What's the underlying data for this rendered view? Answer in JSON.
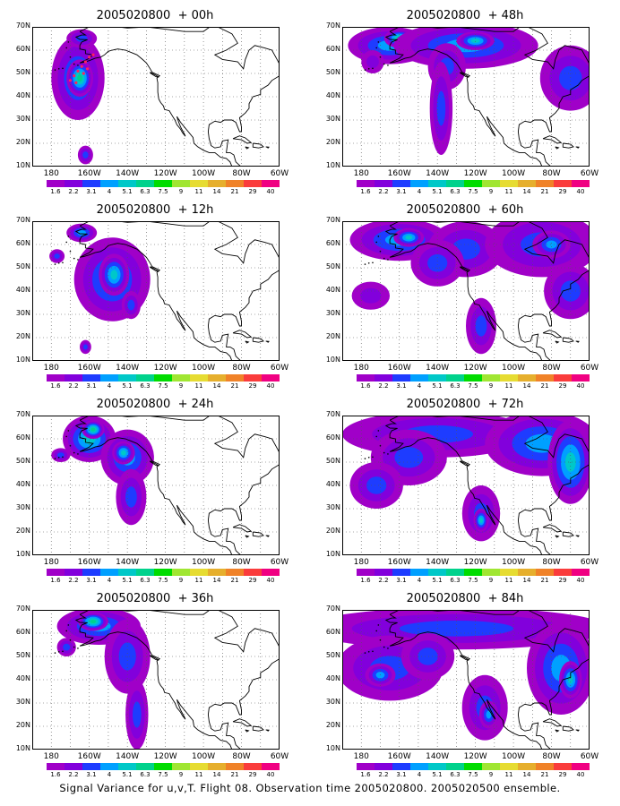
{
  "base_time": "2005020800",
  "caption": "Signal Variance for u,v,T. Flight 08. Observation time 2005020800. 2005020500 ensemble.",
  "y_ticks": [
    "70N",
    "60N",
    "50N",
    "40N",
    "30N",
    "20N",
    "10N"
  ],
  "x_ticks": [
    "180",
    "160W",
    "140W",
    "120W",
    "100W",
    "80W",
    "60W"
  ],
  "colorbar": {
    "colors": [
      "#a000c8",
      "#8200dc",
      "#1e3cff",
      "#00a0ff",
      "#00c8c8",
      "#00d28c",
      "#00dc00",
      "#a0e632",
      "#e6dc32",
      "#e6af2d",
      "#f08228",
      "#fa3c3c",
      "#f00082"
    ],
    "labels": [
      "1.6",
      "2.2",
      "3.1",
      "4",
      "5.1",
      "6.3",
      "7.5",
      "9",
      "11",
      "14",
      "21",
      "29",
      "40"
    ]
  },
  "panels": [
    {
      "title": "2005020800  + 00h",
      "offset": "+ 00h",
      "blobs": [
        {
          "lon": -166,
          "lat": 48,
          "w": 14,
          "h": 18,
          "v": 3
        },
        {
          "lon": -165,
          "lat": 48,
          "w": 7,
          "h": 8,
          "v": 5
        },
        {
          "lon": -164,
          "lat": 65,
          "w": 8,
          "h": 4,
          "v": 2
        },
        {
          "lon": -162,
          "lat": 15,
          "w": 4,
          "h": 4,
          "v": 2
        }
      ]
    },
    {
      "title": "2005020800  + 48h",
      "offset": "+ 48h",
      "blobs": [
        {
          "lon": -165,
          "lat": 62,
          "w": 22,
          "h": 8,
          "v": 3
        },
        {
          "lon": -160,
          "lat": 65,
          "w": 8,
          "h": 4,
          "v": 5
        },
        {
          "lon": -125,
          "lat": 62,
          "w": 38,
          "h": 10,
          "v": 3
        },
        {
          "lon": -120,
          "lat": 64,
          "w": 10,
          "h": 4,
          "v": 4
        },
        {
          "lon": -135,
          "lat": 53,
          "w": 10,
          "h": 10,
          "v": 2
        },
        {
          "lon": -138,
          "lat": 35,
          "w": 6,
          "h": 20,
          "v": 2
        },
        {
          "lon": -70,
          "lat": 48,
          "w": 16,
          "h": 14,
          "v": 2
        },
        {
          "lon": -174,
          "lat": 55,
          "w": 6,
          "h": 5,
          "v": 1
        }
      ]
    },
    {
      "title": "2005020800  + 12h",
      "offset": "+ 12h",
      "blobs": [
        {
          "lon": -164,
          "lat": 65,
          "w": 8,
          "h": 4,
          "v": 3
        },
        {
          "lon": -148,
          "lat": 45,
          "w": 20,
          "h": 18,
          "v": 3
        },
        {
          "lon": -147,
          "lat": 47,
          "w": 8,
          "h": 9,
          "v": 4
        },
        {
          "lon": -138,
          "lat": 34,
          "w": 5,
          "h": 6,
          "v": 2
        },
        {
          "lon": -177,
          "lat": 55,
          "w": 4,
          "h": 3,
          "v": 2
        },
        {
          "lon": -162,
          "lat": 16,
          "w": 3,
          "h": 3,
          "v": 2
        }
      ]
    },
    {
      "title": "2005020800  + 60h",
      "offset": "+ 60h",
      "blobs": [
        {
          "lon": -160,
          "lat": 62,
          "w": 26,
          "h": 9,
          "v": 3
        },
        {
          "lon": -155,
          "lat": 63,
          "w": 8,
          "h": 4,
          "v": 4
        },
        {
          "lon": -125,
          "lat": 58,
          "w": 20,
          "h": 12,
          "v": 2
        },
        {
          "lon": -140,
          "lat": 52,
          "w": 14,
          "h": 10,
          "v": 2
        },
        {
          "lon": -85,
          "lat": 60,
          "w": 30,
          "h": 14,
          "v": 2
        },
        {
          "lon": -80,
          "lat": 60,
          "w": 10,
          "h": 6,
          "v": 3
        },
        {
          "lon": -70,
          "lat": 40,
          "w": 14,
          "h": 12,
          "v": 2
        },
        {
          "lon": -175,
          "lat": 38,
          "w": 10,
          "h": 6,
          "v": 1
        },
        {
          "lon": -117,
          "lat": 25,
          "w": 8,
          "h": 12,
          "v": 2
        }
      ]
    },
    {
      "title": "2005020800  + 24h",
      "offset": "+ 24h",
      "blobs": [
        {
          "lon": -160,
          "lat": 60,
          "w": 14,
          "h": 10,
          "v": 4
        },
        {
          "lon": -158,
          "lat": 64,
          "w": 6,
          "h": 4,
          "v": 5
        },
        {
          "lon": -140,
          "lat": 52,
          "w": 14,
          "h": 12,
          "v": 3
        },
        {
          "lon": -142,
          "lat": 54,
          "w": 6,
          "h": 5,
          "v": 4
        },
        {
          "lon": -138,
          "lat": 35,
          "w": 8,
          "h": 12,
          "v": 2
        },
        {
          "lon": -175,
          "lat": 53,
          "w": 5,
          "h": 3,
          "v": 2
        }
      ]
    },
    {
      "title": "2005020800  + 72h",
      "offset": "+ 72h",
      "blobs": [
        {
          "lon": -140,
          "lat": 62,
          "w": 50,
          "h": 10,
          "v": 2
        },
        {
          "lon": -155,
          "lat": 52,
          "w": 20,
          "h": 12,
          "v": 2
        },
        {
          "lon": -172,
          "lat": 40,
          "w": 14,
          "h": 10,
          "v": 2
        },
        {
          "lon": -117,
          "lat": 28,
          "w": 10,
          "h": 12,
          "v": 2
        },
        {
          "lon": -117,
          "lat": 25,
          "w": 4,
          "h": 5,
          "v": 4
        },
        {
          "lon": -85,
          "lat": 58,
          "w": 30,
          "h": 14,
          "v": 3
        },
        {
          "lon": -70,
          "lat": 50,
          "w": 12,
          "h": 18,
          "v": 4
        }
      ]
    },
    {
      "title": "2005020800  + 36h",
      "offset": "+ 36h",
      "blobs": [
        {
          "lon": -155,
          "lat": 63,
          "w": 22,
          "h": 8,
          "v": 3
        },
        {
          "lon": -158,
          "lat": 65,
          "w": 8,
          "h": 4,
          "v": 5
        },
        {
          "lon": -140,
          "lat": 50,
          "w": 12,
          "h": 16,
          "v": 2
        },
        {
          "lon": -135,
          "lat": 25,
          "w": 6,
          "h": 15,
          "v": 2
        },
        {
          "lon": -172,
          "lat": 54,
          "w": 5,
          "h": 4,
          "v": 2
        }
      ]
    },
    {
      "title": "2005020800  + 84h",
      "offset": "+ 84h",
      "blobs": [
        {
          "lon": -130,
          "lat": 62,
          "w": 80,
          "h": 9,
          "v": 2
        },
        {
          "lon": -165,
          "lat": 45,
          "w": 28,
          "h": 14,
          "v": 2
        },
        {
          "lon": -170,
          "lat": 42,
          "w": 8,
          "h": 5,
          "v": 3
        },
        {
          "lon": -145,
          "lat": 50,
          "w": 14,
          "h": 10,
          "v": 2
        },
        {
          "lon": -115,
          "lat": 28,
          "w": 12,
          "h": 14,
          "v": 2
        },
        {
          "lon": -113,
          "lat": 25,
          "w": 5,
          "h": 6,
          "v": 3
        },
        {
          "lon": -75,
          "lat": 45,
          "w": 18,
          "h": 20,
          "v": 3
        },
        {
          "lon": -70,
          "lat": 40,
          "w": 6,
          "h": 8,
          "v": 4
        }
      ]
    }
  ]
}
